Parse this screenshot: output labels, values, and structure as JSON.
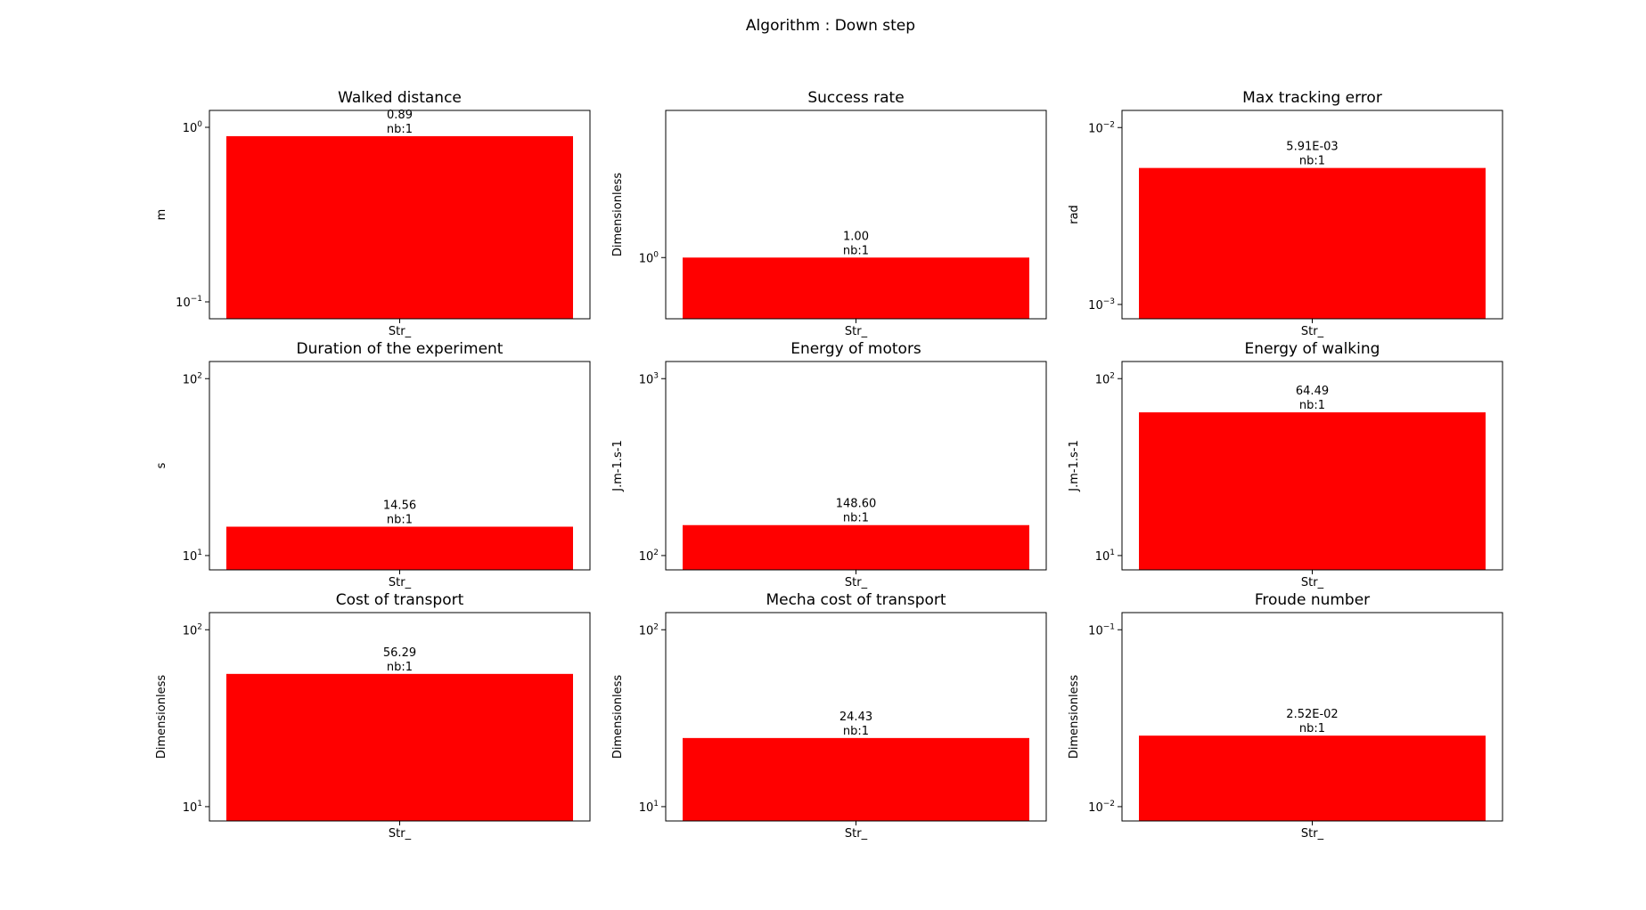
{
  "figure_title": "Algorithm : Down step",
  "bar_color": "#ff0000",
  "chart_data": [
    {
      "type": "bar",
      "title": "Walked distance",
      "ylabel": "m",
      "categories": [
        "Str_"
      ],
      "values": [
        0.89
      ],
      "value_labels": [
        "0.89"
      ],
      "count_labels": [
        "nb:1"
      ],
      "yscale": "log",
      "ylim": [
        0.08,
        1.25
      ],
      "yticks": [
        {
          "base": "10",
          "exp": "0",
          "value": 1
        },
        {
          "base": "10",
          "exp": "−1",
          "value": 0.1
        }
      ]
    },
    {
      "type": "bar",
      "title": "Success rate",
      "ylabel": "Dimensionless",
      "categories": [
        "Str_"
      ],
      "values": [
        1.0
      ],
      "value_labels": [
        "1.00"
      ],
      "count_labels": [
        "nb:1"
      ],
      "yscale": "log",
      "ylim": [
        0.44,
        7.2
      ],
      "yticks": [
        {
          "base": "10",
          "exp": "0",
          "value": 1
        }
      ]
    },
    {
      "type": "bar",
      "title": "Max tracking error",
      "ylabel": "rad",
      "categories": [
        "Str_"
      ],
      "values": [
        0.00591
      ],
      "value_labels": [
        "5.91E-03"
      ],
      "count_labels": [
        "nb:1"
      ],
      "yscale": "log",
      "ylim": [
        0.00083,
        0.0125
      ],
      "yticks": [
        {
          "base": "10",
          "exp": "−2",
          "value": 0.01
        },
        {
          "base": "10",
          "exp": "−3",
          "value": 0.001
        }
      ]
    },
    {
      "type": "bar",
      "title": "Duration of the experiment",
      "ylabel": "s",
      "categories": [
        "Str_"
      ],
      "values": [
        14.56
      ],
      "value_labels": [
        "14.56"
      ],
      "count_labels": [
        "nb:1"
      ],
      "yscale": "log",
      "ylim": [
        8.3,
        125
      ],
      "yticks": [
        {
          "base": "10",
          "exp": "2",
          "value": 100
        },
        {
          "base": "10",
          "exp": "1",
          "value": 10
        }
      ]
    },
    {
      "type": "bar",
      "title": "Energy of motors",
      "ylabel": "J.m-1.s-1",
      "categories": [
        "Str_"
      ],
      "values": [
        148.6
      ],
      "value_labels": [
        "148.60"
      ],
      "count_labels": [
        "nb:1"
      ],
      "yscale": "log",
      "ylim": [
        83,
        1250
      ],
      "yticks": [
        {
          "base": "10",
          "exp": "3",
          "value": 1000
        },
        {
          "base": "10",
          "exp": "2",
          "value": 100
        }
      ]
    },
    {
      "type": "bar",
      "title": "Energy of walking",
      "ylabel": "J.m-1.s-1",
      "categories": [
        "Str_"
      ],
      "values": [
        64.49
      ],
      "value_labels": [
        "64.49"
      ],
      "count_labels": [
        "nb:1"
      ],
      "yscale": "log",
      "ylim": [
        8.3,
        125
      ],
      "yticks": [
        {
          "base": "10",
          "exp": "2",
          "value": 100
        },
        {
          "base": "10",
          "exp": "1",
          "value": 10
        }
      ]
    },
    {
      "type": "bar",
      "title": "Cost of transport",
      "ylabel": "Dimensionless",
      "categories": [
        "Str_"
      ],
      "values": [
        56.29
      ],
      "value_labels": [
        "56.29"
      ],
      "count_labels": [
        "nb:1"
      ],
      "yscale": "log",
      "ylim": [
        8.3,
        125
      ],
      "yticks": [
        {
          "base": "10",
          "exp": "2",
          "value": 100
        },
        {
          "base": "10",
          "exp": "1",
          "value": 10
        }
      ]
    },
    {
      "type": "bar",
      "title": "Mecha cost of transport",
      "ylabel": "Dimensionless",
      "categories": [
        "Str_"
      ],
      "values": [
        24.43
      ],
      "value_labels": [
        "24.43"
      ],
      "count_labels": [
        "nb:1"
      ],
      "yscale": "log",
      "ylim": [
        8.3,
        125
      ],
      "yticks": [
        {
          "base": "10",
          "exp": "2",
          "value": 100
        },
        {
          "base": "10",
          "exp": "1",
          "value": 10
        }
      ]
    },
    {
      "type": "bar",
      "title": "Froude number",
      "ylabel": "Dimensionless",
      "categories": [
        "Str_"
      ],
      "values": [
        0.0252
      ],
      "value_labels": [
        "2.52E-02"
      ],
      "count_labels": [
        "nb:1"
      ],
      "yscale": "log",
      "ylim": [
        0.0083,
        0.125
      ],
      "yticks": [
        {
          "base": "10",
          "exp": "−1",
          "value": 0.1
        },
        {
          "base": "10",
          "exp": "−2",
          "value": 0.01
        }
      ]
    }
  ]
}
